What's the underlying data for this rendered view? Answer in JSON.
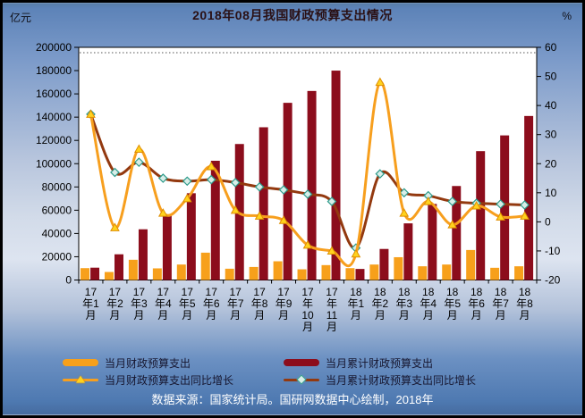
{
  "header": {
    "title": "2018年08月我国财政预算支出情况",
    "left_unit": "亿元",
    "right_unit": "%"
  },
  "legend": [
    {
      "label": "当月财政预算支出",
      "swatch": "bar",
      "color": "#F7A01B"
    },
    {
      "label": "当月累计财政预算支出",
      "swatch": "bar",
      "color": "#8C0D1C"
    },
    {
      "label": "当月财政预算支出同比增长",
      "swatch": "line-triangle",
      "color": "#F79F1E"
    },
    {
      "label": "当月累计财政预算支出同比增长",
      "swatch": "line-diamond",
      "color": "#93390F"
    }
  ],
  "caption": "数据来源：国家统计局。国研网数据中心绘制，2018年",
  "colors": {
    "plot_background": "#ffffff",
    "axis": "#000000",
    "bar_monthly": "#F7A01B",
    "bar_cumulative": "#8C0D1C",
    "line_monthly_yoy": "#F79F1E",
    "line_cumulative_yoy": "#93390F",
    "triangle_marker_fill": "#FFD21E",
    "triangle_marker_stroke": "#DF8E00",
    "diamond_marker_fill": "#D8EEE8",
    "diamond_marker_stroke": "#2E9B8B"
  },
  "chart_data": {
    "type": "bar",
    "subtype": "bar-line-combo",
    "title": "2018年08月我国财政预算支出情况",
    "xlabel": "",
    "ylabel_left": "亿元",
    "ylabel_right": "%",
    "grid": "top dotted line only",
    "legend_position": "bottom",
    "categories": [
      "17年1月",
      "17年2月",
      "17年3月",
      "17年4月",
      "17年5月",
      "17年6月",
      "17年7月",
      "17年8月",
      "17年9月",
      "17年10月",
      "17年11月",
      "18年1月",
      "18年2月",
      "18年3月",
      "18年4月",
      "18年5月",
      "18年6月",
      "18年7月",
      "18年8月"
    ],
    "left_axis": {
      "min": 0,
      "max": 200000,
      "step": 20000
    },
    "right_axis": {
      "min": -20,
      "max": 60,
      "step": 10
    },
    "series": [
      {
        "name": "当月财政预算支出",
        "type": "bar",
        "axis": "left",
        "color": "#F7A01B",
        "values": [
          10200,
          6900,
          17400,
          10000,
          13300,
          23500,
          9700,
          11200,
          16100,
          9200,
          12800,
          10200,
          13300,
          19600,
          11800,
          13300,
          25800,
          10500,
          11800
        ]
      },
      {
        "name": "当月累计财政预算支出",
        "type": "bar",
        "axis": "left",
        "color": "#8C0D1C",
        "values": [
          10600,
          22100,
          43600,
          55400,
          74600,
          102500,
          116900,
          131300,
          152300,
          162500,
          180000,
          9500,
          26700,
          48700,
          65400,
          80800,
          110800,
          124300,
          141000
        ]
      },
      {
        "name": "当月财政预算支出同比增长",
        "type": "line",
        "axis": "right",
        "color": "#F79F1E",
        "marker": "triangle",
        "marker_fill": "#FFD21E",
        "marker_stroke": "#DF8E00",
        "values": [
          37,
          -2,
          25,
          3,
          8,
          19,
          4,
          2,
          0.5,
          -8,
          -10,
          -11,
          48,
          3,
          7,
          -1,
          5.5,
          1.7,
          2
        ]
      },
      {
        "name": "当月累计财政预算支出同比增长",
        "type": "line",
        "axis": "right",
        "color": "#93390F",
        "marker": "diamond",
        "marker_fill": "#D8EEE8",
        "marker_stroke": "#2E9B8B",
        "values": [
          37,
          17,
          20.5,
          15,
          14,
          14.5,
          13.5,
          12,
          11,
          9.5,
          7,
          -9,
          16.5,
          10,
          9,
          7,
          6.4,
          6.1,
          5.8
        ]
      }
    ]
  }
}
